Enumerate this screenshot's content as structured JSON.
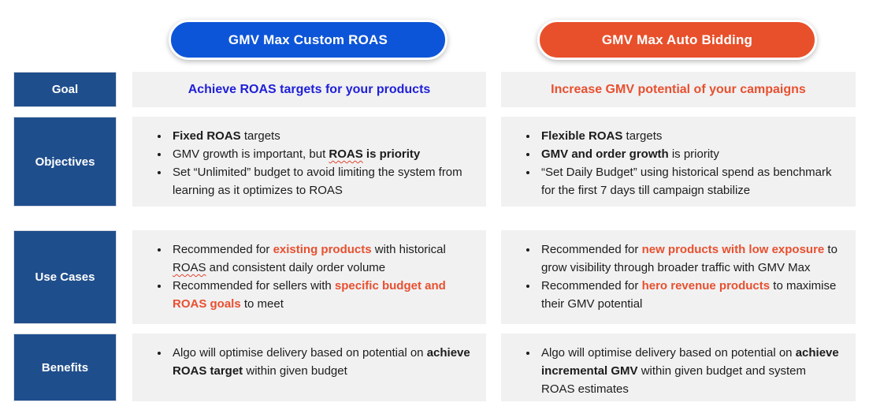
{
  "colors": {
    "pill_blue": "#0d55d8",
    "pill_orange": "#e8502b",
    "navy": "#1f4e8c",
    "goal_blue": "#1f1fd8",
    "accent_orange": "#e8502f",
    "cell_bg": "#f1f1f2"
  },
  "header": {
    "left_pill": "GMV Max Custom ROAS",
    "right_pill": "GMV Max Auto Bidding"
  },
  "rows": {
    "goal": {
      "label": "Goal",
      "left": "Achieve ROAS targets for your products",
      "right": "Increase GMV potential of your campaigns"
    },
    "objectives": {
      "label": "Objectives",
      "left": {
        "bullets": [
          [
            {
              "t": "Fixed ROAS",
              "b": true
            },
            {
              "t": " targets"
            }
          ],
          [
            {
              "t": "GMV growth is important, but "
            },
            {
              "t": "ROAS",
              "b": true,
              "squiggle": true
            },
            {
              "t": " is priority",
              "b": true
            }
          ],
          [
            {
              "t": "Set “Unlimited” budget to avoid limiting the system from learning as it optimizes to ROAS"
            }
          ]
        ]
      },
      "right": {
        "bullets": [
          [
            {
              "t": "Flexible ROAS",
              "b": true
            },
            {
              "t": " targets"
            }
          ],
          [
            {
              "t": "GMV and order growth",
              "b": true
            },
            {
              "t": " is priority"
            }
          ],
          [
            {
              "t": "“Set Daily Budget” using historical spend as benchmark for the first 7 days till campaign stabilize"
            }
          ]
        ]
      }
    },
    "use_cases": {
      "label": "Use Cases",
      "left": {
        "bullets": [
          [
            {
              "t": "Recommended for "
            },
            {
              "t": "existing products",
              "b": true,
              "c": "accent_orange"
            },
            {
              "t": " with historical "
            },
            {
              "t": "ROAS",
              "squiggle": true
            },
            {
              "t": " and consistent daily order volume"
            }
          ],
          [
            {
              "t": "Recommended for sellers with "
            },
            {
              "t": "specific budget and ROAS goals",
              "b": true,
              "c": "accent_orange"
            },
            {
              "t": " to meet"
            }
          ]
        ]
      },
      "right": {
        "bullets": [
          [
            {
              "t": "Recommended for "
            },
            {
              "t": "new products with low exposure",
              "b": true,
              "c": "accent_orange"
            },
            {
              "t": " to grow visibility through broader traffic with GMV Max"
            }
          ],
          [
            {
              "t": "Recommended for "
            },
            {
              "t": "hero revenue products",
              "b": true,
              "c": "accent_orange"
            },
            {
              "t": " to maximise their GMV potential"
            }
          ]
        ]
      }
    },
    "benefits": {
      "label": "Benefits",
      "left": {
        "bullets": [
          [
            {
              "t": "Algo will optimise delivery based on potential on "
            },
            {
              "t": "achieve ROAS target",
              "b": true
            },
            {
              "t": " within given budget"
            }
          ]
        ]
      },
      "right": {
        "bullets": [
          [
            {
              "t": "Algo will optimise delivery based on potential on "
            },
            {
              "t": "achieve incremental GMV",
              "b": true
            },
            {
              "t": " within given budget and system ROAS estimates"
            }
          ]
        ]
      }
    }
  }
}
